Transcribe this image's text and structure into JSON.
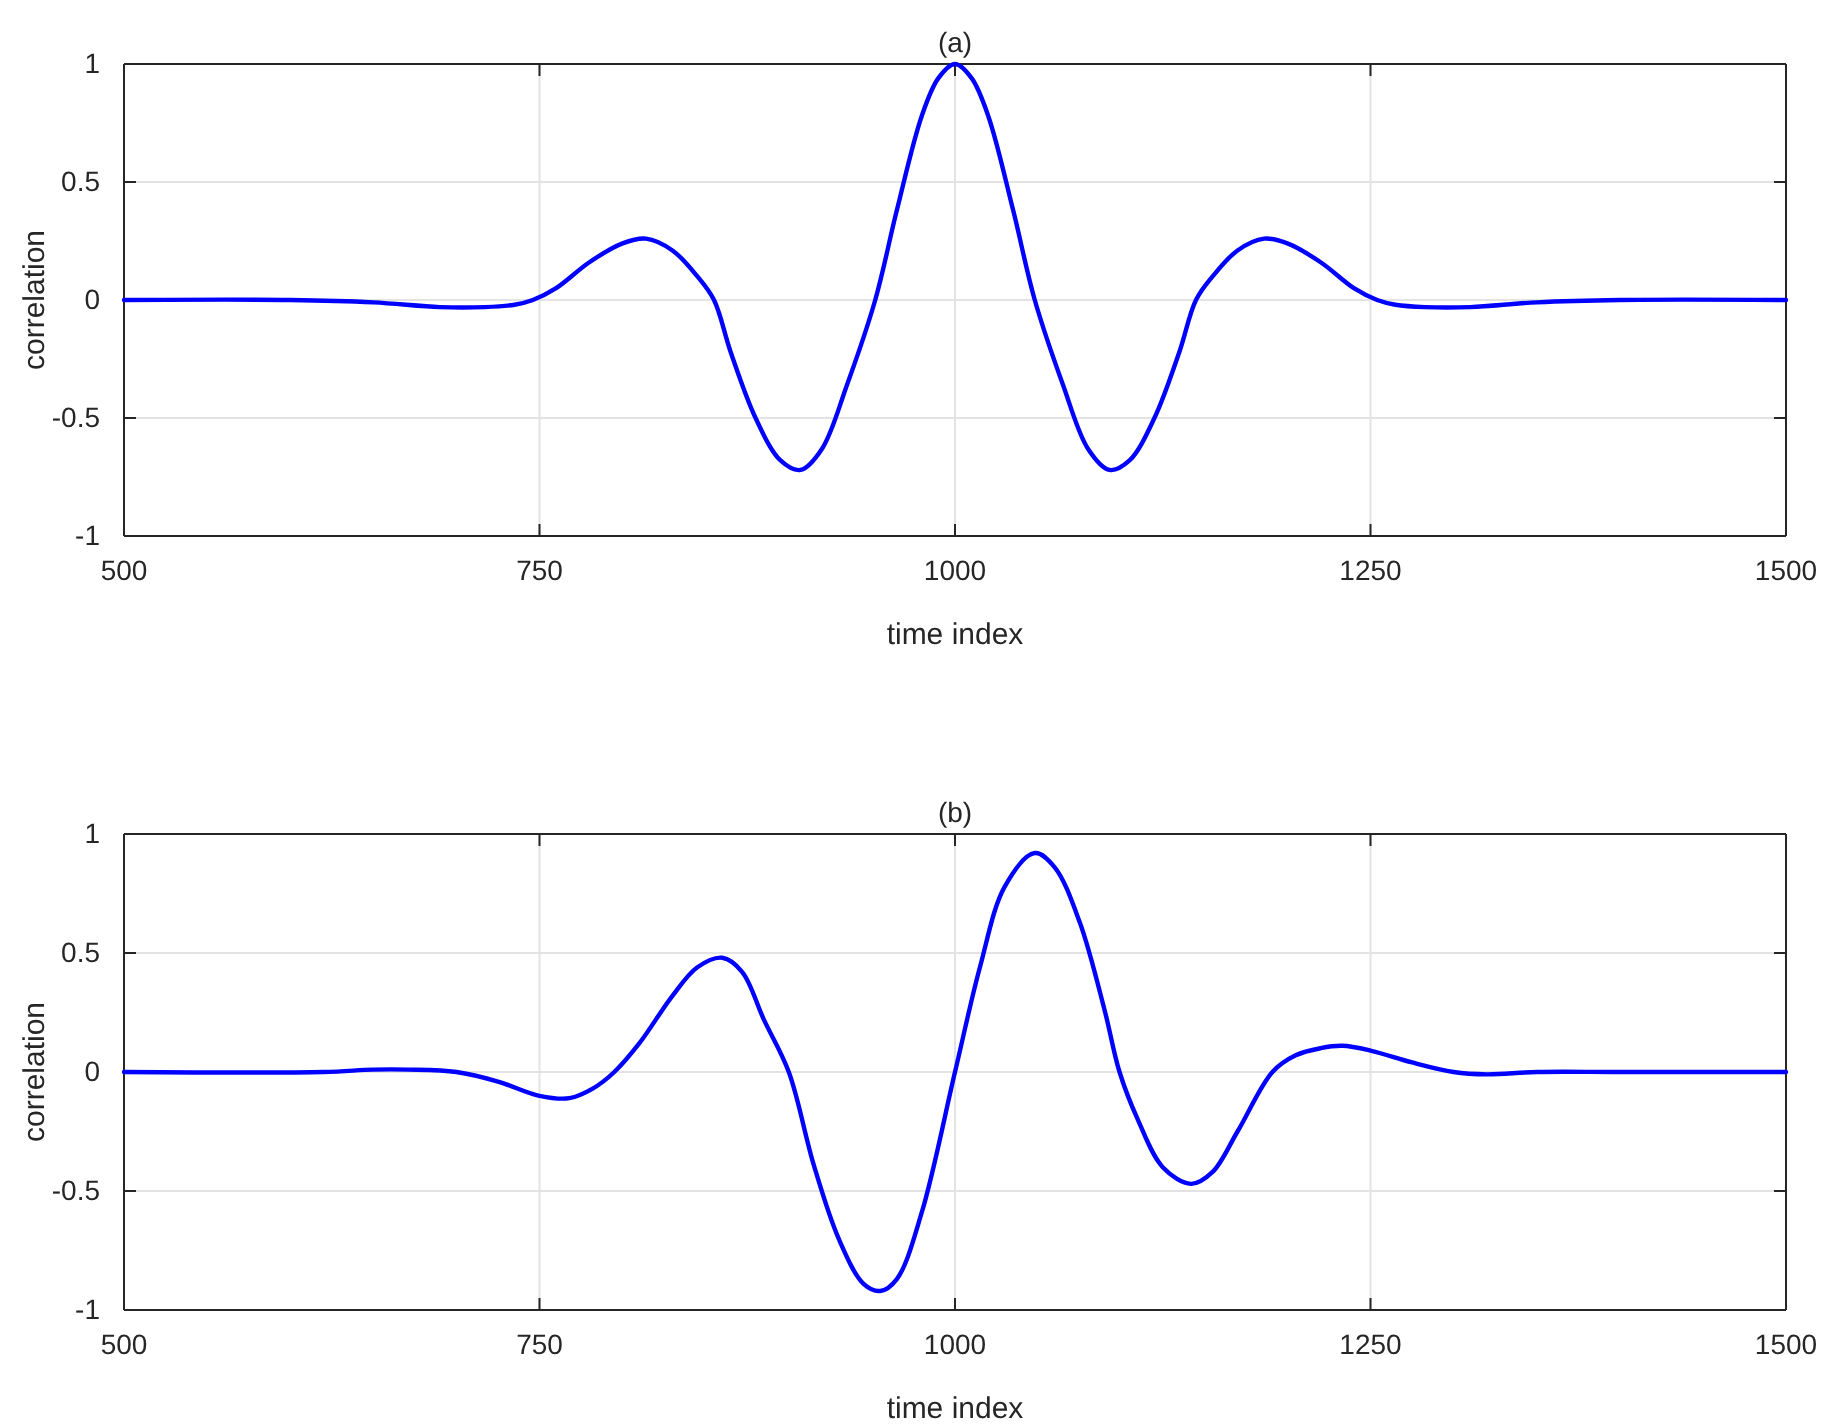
{
  "chart_data": [
    {
      "type": "line",
      "title": "(a)",
      "xlabel": "time index",
      "ylabel": "correlation",
      "xlim": [
        500,
        1500
      ],
      "xticks": [
        500,
        750,
        1000,
        1250,
        1500
      ],
      "ylim": [
        -1,
        1
      ],
      "yticks": [
        -1,
        -0.5,
        0,
        0.5,
        1
      ],
      "grid": true,
      "marker": "none",
      "line_style": "solid",
      "x": [
        500,
        600,
        650,
        690,
        717,
        735,
        746,
        760,
        780,
        800,
        814,
        830,
        845,
        855,
        865,
        880,
        895,
        907,
        920,
        935,
        952,
        965,
        980,
        990,
        1000,
        1010,
        1020,
        1035,
        1048,
        1065,
        1080,
        1093,
        1105,
        1120,
        1135,
        1145,
        1155,
        1170,
        1186,
        1200,
        1220,
        1240,
        1254,
        1265,
        1283,
        1310,
        1350,
        1400,
        1500
      ],
      "series": [
        {
          "color": "#0000ff",
          "values": [
            0,
            0,
            -0.01,
            -0.03,
            -0.03,
            -0.02,
            0,
            0.05,
            0.16,
            0.24,
            0.26,
            0.21,
            0.1,
            0,
            -0.22,
            -0.5,
            -0.68,
            -0.72,
            -0.63,
            -0.36,
            0,
            0.38,
            0.78,
            0.94,
            1,
            0.94,
            0.78,
            0.38,
            0,
            -0.36,
            -0.63,
            -0.72,
            -0.68,
            -0.5,
            -0.22,
            0,
            0.1,
            0.21,
            0.26,
            0.24,
            0.16,
            0.05,
            0,
            -0.02,
            -0.03,
            -0.03,
            -0.01,
            0,
            0
          ]
        }
      ]
    },
    {
      "type": "line",
      "title": "(b)",
      "xlabel": "time index",
      "ylabel": "correlation",
      "xlim": [
        500,
        1500
      ],
      "xticks": [
        500,
        750,
        1000,
        1250,
        1500
      ],
      "ylim": [
        -1,
        1
      ],
      "yticks": [
        -1,
        -0.5,
        0,
        0.5,
        1
      ],
      "grid": true,
      "marker": "none",
      "line_style": "solid",
      "x": [
        500,
        620,
        650,
        671,
        700,
        725,
        750,
        768,
        782,
        795,
        810,
        830,
        845,
        860,
        872,
        885,
        900,
        915,
        930,
        945,
        955,
        965,
        980,
        1000,
        1015,
        1030,
        1048,
        1060,
        1075,
        1090,
        1099,
        1110,
        1125,
        1142,
        1155,
        1170,
        1191,
        1205,
        1220,
        1233,
        1250,
        1275,
        1300,
        1320,
        1350,
        1400,
        1500
      ],
      "series": [
        {
          "color": "#0000ff",
          "values": [
            0,
            0,
            0.01,
            0.01,
            0,
            -0.04,
            -0.1,
            -0.11,
            -0.07,
            0,
            0.12,
            0.32,
            0.44,
            0.48,
            0.42,
            0.22,
            0,
            -0.39,
            -0.7,
            -0.89,
            -0.92,
            -0.87,
            -0.59,
            0,
            0.44,
            0.78,
            0.92,
            0.86,
            0.63,
            0.26,
            0,
            -0.2,
            -0.4,
            -0.47,
            -0.42,
            -0.25,
            0,
            0.07,
            0.1,
            0.11,
            0.09,
            0.04,
            0,
            -0.01,
            0,
            0,
            0
          ]
        }
      ]
    }
  ]
}
